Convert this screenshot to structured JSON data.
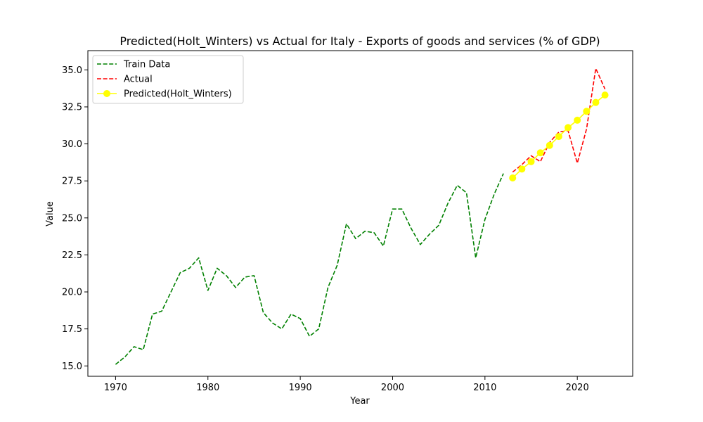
{
  "chart_data": {
    "type": "line",
    "title": "Predicted(Holt_Winters) vs Actual for Italy - Exports of goods and services (% of GDP)",
    "xlabel": "Year",
    "ylabel": "Value",
    "xlim": [
      1967,
      2026
    ],
    "ylim": [
      14.3,
      36.3
    ],
    "xticks": [
      1970,
      1980,
      1990,
      2000,
      2010,
      2020
    ],
    "yticks": [
      15.0,
      17.5,
      20.0,
      22.5,
      25.0,
      27.5,
      30.0,
      32.5,
      35.0
    ],
    "ytick_labels": [
      "15.0",
      "17.5",
      "20.0",
      "22.5",
      "25.0",
      "27.5",
      "30.0",
      "32.5",
      "35.0"
    ],
    "grid": false,
    "legend_position": "upper-left",
    "series": [
      {
        "name": "Train Data",
        "color": "#008000",
        "style": "dashed",
        "marker": "none",
        "x": [
          1970,
          1971,
          1972,
          1973,
          1974,
          1975,
          1976,
          1977,
          1978,
          1979,
          1980,
          1981,
          1982,
          1983,
          1984,
          1985,
          1986,
          1987,
          1988,
          1989,
          1990,
          1991,
          1992,
          1993,
          1994,
          1995,
          1996,
          1997,
          1998,
          1999,
          2000,
          2001,
          2002,
          2003,
          2004,
          2005,
          2006,
          2007,
          2008,
          2009,
          2010,
          2011,
          2012
        ],
        "y": [
          15.1,
          15.6,
          16.3,
          16.1,
          18.5,
          18.7,
          20.0,
          21.3,
          21.6,
          22.3,
          20.1,
          21.6,
          21.1,
          20.3,
          21.0,
          21.1,
          18.6,
          17.9,
          17.5,
          18.5,
          18.2,
          17.0,
          17.5,
          20.3,
          21.8,
          24.6,
          23.6,
          24.1,
          24.0,
          23.1,
          25.6,
          25.6,
          24.3,
          23.2,
          23.9,
          24.5,
          26.0,
          27.2,
          26.7,
          22.3,
          24.9,
          26.6,
          28.0
        ]
      },
      {
        "name": "Actual",
        "color": "#ff0000",
        "style": "dashed",
        "marker": "none",
        "x": [
          2013,
          2014,
          2015,
          2016,
          2017,
          2018,
          2019,
          2020,
          2021,
          2022,
          2023
        ],
        "y": [
          28.1,
          28.6,
          29.2,
          28.8,
          30.1,
          30.8,
          30.9,
          28.7,
          31.0,
          35.1,
          33.7
        ]
      },
      {
        "name": "Predicted(Holt_Winters)",
        "color": "#ffff00",
        "style": "solid",
        "marker": "circle",
        "x": [
          2013,
          2014,
          2015,
          2016,
          2017,
          2018,
          2019,
          2020,
          2021,
          2022,
          2023
        ],
        "y": [
          27.7,
          28.3,
          28.8,
          29.4,
          29.9,
          30.5,
          31.1,
          31.6,
          32.2,
          32.8,
          33.3
        ]
      }
    ]
  }
}
